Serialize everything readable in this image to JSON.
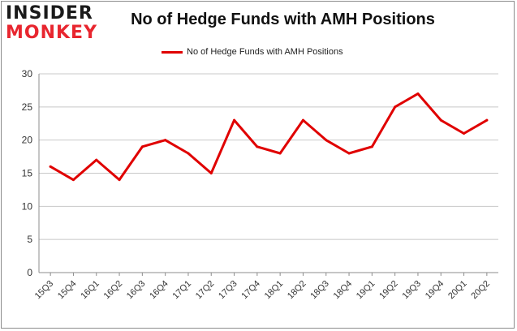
{
  "logo": {
    "line1": "INSIDER",
    "line2": "MONKEY"
  },
  "chart_data": {
    "type": "line",
    "title": "No of Hedge Funds with AMH Positions",
    "categories": [
      "15Q3",
      "15Q4",
      "16Q1",
      "16Q2",
      "16Q3",
      "16Q4",
      "17Q1",
      "17Q2",
      "17Q3",
      "17Q4",
      "18Q1",
      "18Q2",
      "18Q3",
      "18Q4",
      "19Q1",
      "19Q2",
      "19Q3",
      "19Q4",
      "20Q1",
      "20Q2"
    ],
    "series": [
      {
        "name": "No of Hedge Funds with AMH Positions",
        "values": [
          16,
          14,
          17,
          14,
          19,
          20,
          18,
          15,
          23,
          19,
          18,
          23,
          20,
          18,
          19,
          25,
          27,
          23,
          21,
          23
        ]
      }
    ],
    "ylim": [
      0,
      30
    ],
    "yticks": [
      0,
      5,
      10,
      15,
      20,
      25,
      30
    ],
    "grid": true,
    "legend": "top-center",
    "line_color": "#e00000"
  }
}
